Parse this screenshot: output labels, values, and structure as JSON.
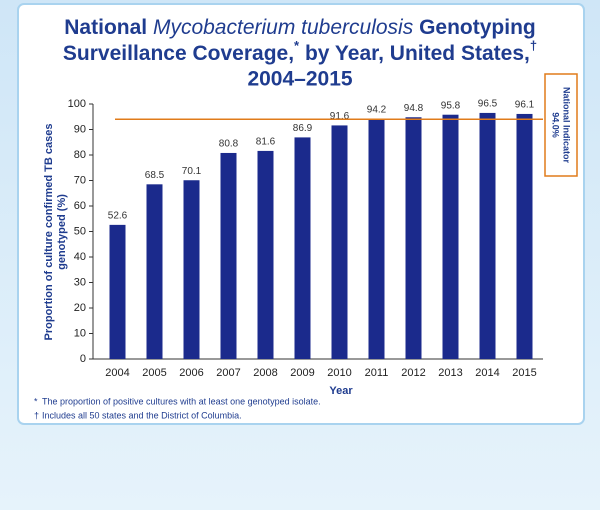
{
  "chart_data": {
    "type": "bar",
    "title_parts": [
      "National",
      "Mycobacterium tuberculosis",
      "Genotyping",
      "Surveillance Coverage,",
      "*",
      "by Year, United States,",
      "†",
      "2004–2015"
    ],
    "categories": [
      "2004",
      "2005",
      "2006",
      "2007",
      "2008",
      "2009",
      "2010",
      "2011",
      "2012",
      "2013",
      "2014",
      "2015"
    ],
    "values": [
      52.6,
      68.5,
      70.1,
      80.8,
      81.6,
      86.9,
      91.6,
      94.2,
      94.8,
      95.8,
      96.5,
      96.1
    ],
    "color": "#1b2a8c",
    "xlabel": "Year",
    "ylabel": [
      "Proportion of culture confirmed TB cases",
      "genotyped (%)"
    ],
    "ylim": [
      0,
      100
    ],
    "yticks": [
      0,
      10,
      20,
      30,
      40,
      50,
      60,
      70,
      80,
      90,
      100
    ],
    "grid": false,
    "reference_line": {
      "value": 94.0,
      "label": "National Indicator",
      "value_label": "94.0%",
      "color": "#e07b1a"
    },
    "footnotes": [
      {
        "symbol": "*",
        "text": "The proportion of positive cultures with at least one genotyped isolate."
      },
      {
        "symbol": "†",
        "text": "Includes all 50 states and the District of Columbia."
      }
    ]
  }
}
